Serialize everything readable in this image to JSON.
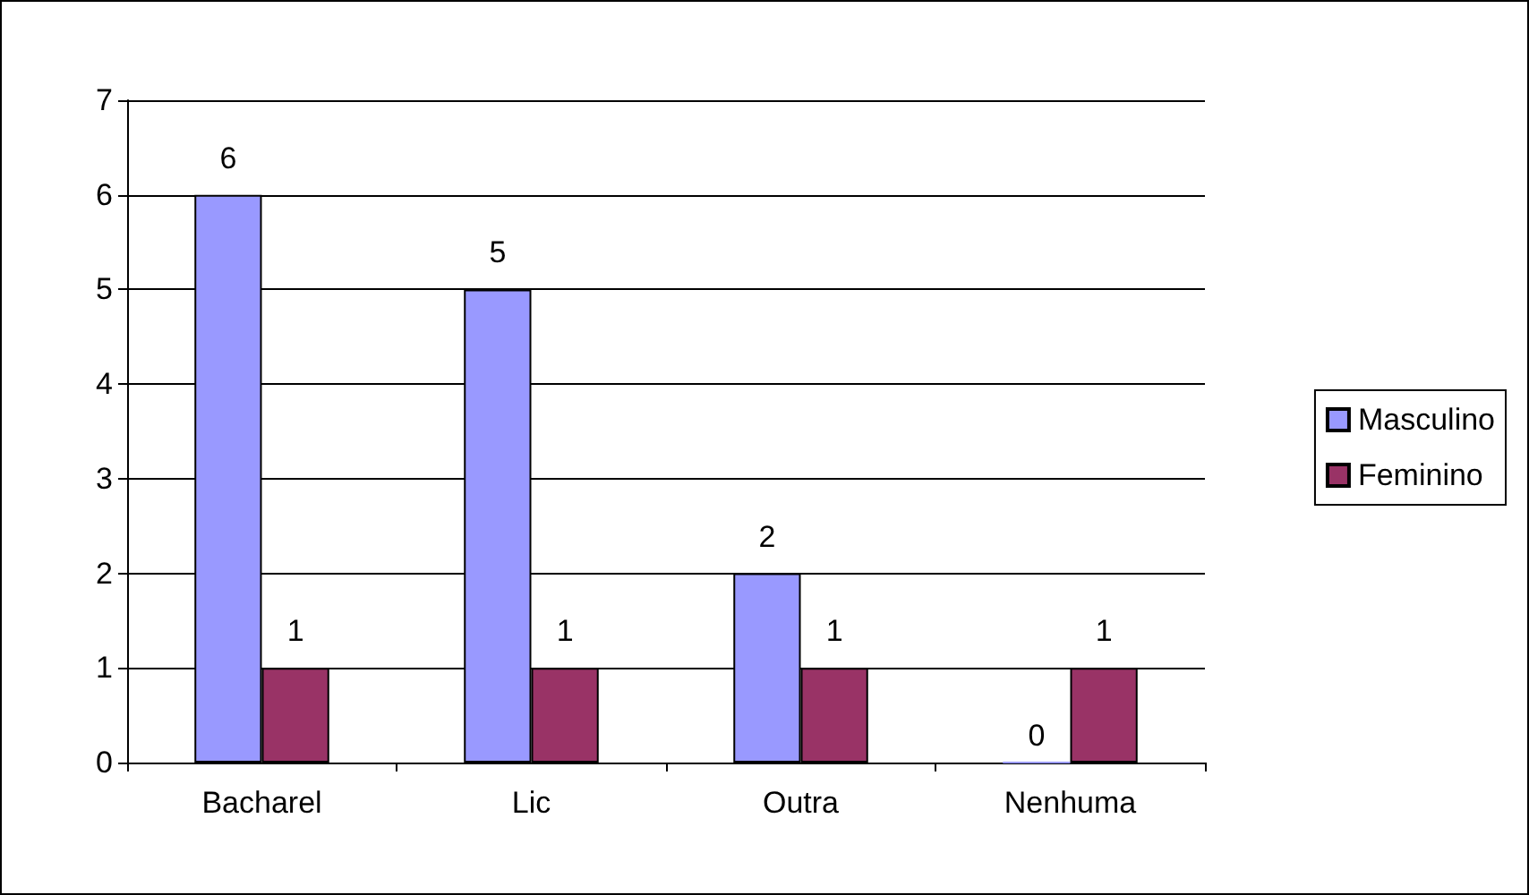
{
  "chart_data": {
    "type": "bar",
    "categories": [
      "Bacharel",
      "Lic",
      "Outra",
      "Nenhuma"
    ],
    "series": [
      {
        "name": "Masculino",
        "color": "#9999ff",
        "values": [
          6,
          5,
          2,
          0
        ]
      },
      {
        "name": "Feminino",
        "color": "#993366",
        "values": [
          1,
          1,
          1,
          1
        ]
      }
    ],
    "ylim": [
      0,
      7
    ],
    "yticks": [
      0,
      1,
      2,
      3,
      4,
      5,
      6,
      7
    ],
    "grid": "y",
    "legend": "right",
    "data_labels": true
  }
}
